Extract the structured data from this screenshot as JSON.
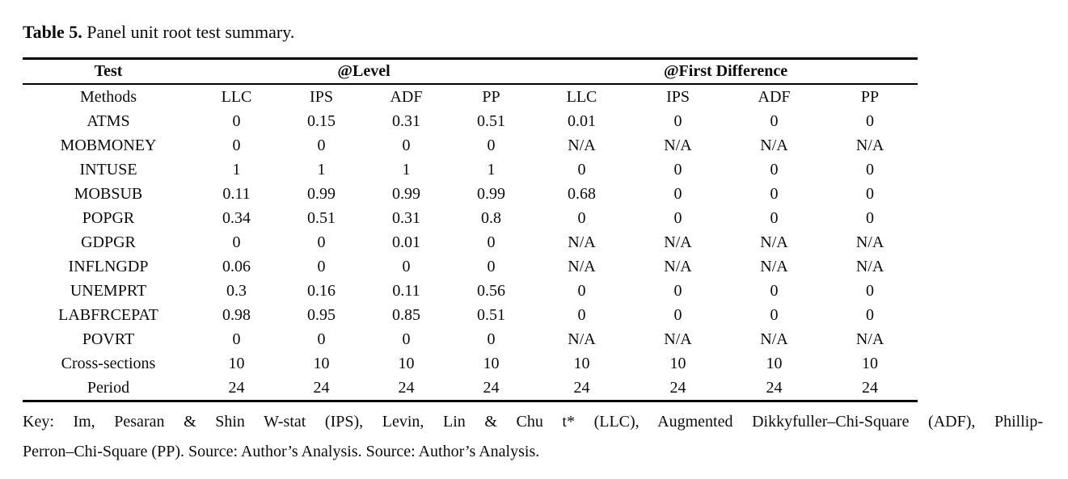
{
  "title": {
    "label": "Table 5.",
    "text": "Panel unit root test summary."
  },
  "table": {
    "group_headers": [
      {
        "label": "Test",
        "span": 1
      },
      {
        "label": "@Level",
        "span": 4
      },
      {
        "label": "@First Difference",
        "span": 4
      }
    ],
    "columns": [
      "Methods",
      "LLC",
      "IPS",
      "ADF",
      "PP",
      "LLC",
      "IPS",
      "ADF",
      "PP"
    ],
    "rows": [
      [
        "ATMS",
        "0",
        "0.15",
        "0.31",
        "0.51",
        "0.01",
        "0",
        "0",
        "0"
      ],
      [
        "MOBMONEY",
        "0",
        "0",
        "0",
        "0",
        "N/A",
        "N/A",
        "N/A",
        "N/A"
      ],
      [
        "INTUSE",
        "1",
        "1",
        "1",
        "1",
        "0",
        "0",
        "0",
        "0"
      ],
      [
        "MOBSUB",
        "0.11",
        "0.99",
        "0.99",
        "0.99",
        "0.68",
        "0",
        "0",
        "0"
      ],
      [
        "POPGR",
        "0.34",
        "0.51",
        "0.31",
        "0.8",
        "0",
        "0",
        "0",
        "0"
      ],
      [
        "GDPGR",
        "0",
        "0",
        "0.01",
        "0",
        "N/A",
        "N/A",
        "N/A",
        "N/A"
      ],
      [
        "INFLNGDP",
        "0.06",
        "0",
        "0",
        "0",
        "N/A",
        "N/A",
        "N/A",
        "N/A"
      ],
      [
        "UNEMPRT",
        "0.3",
        "0.16",
        "0.11",
        "0.56",
        "0",
        "0",
        "0",
        "0"
      ],
      [
        "LABFRCEPAT",
        "0.98",
        "0.95",
        "0.85",
        "0.51",
        "0",
        "0",
        "0",
        "0"
      ],
      [
        "POVRT",
        "0",
        "0",
        "0",
        "0",
        "N/A",
        "N/A",
        "N/A",
        "N/A"
      ],
      [
        "Cross-sections",
        "10",
        "10",
        "10",
        "10",
        "10",
        "10",
        "10",
        "10"
      ],
      [
        "Period",
        "24",
        "24",
        "24",
        "24",
        "24",
        "24",
        "24",
        "24"
      ]
    ]
  },
  "note": {
    "line1": "Key: Im, Pesaran & Shin W-stat (IPS), Levin, Lin & Chu t* (LLC), Augmented Dikkyfuller–Chi-Square (ADF), Phillip-",
    "line2": "Perron–Chi-Square (PP). Source: Author’s Analysis. Source: Author’s Analysis."
  }
}
